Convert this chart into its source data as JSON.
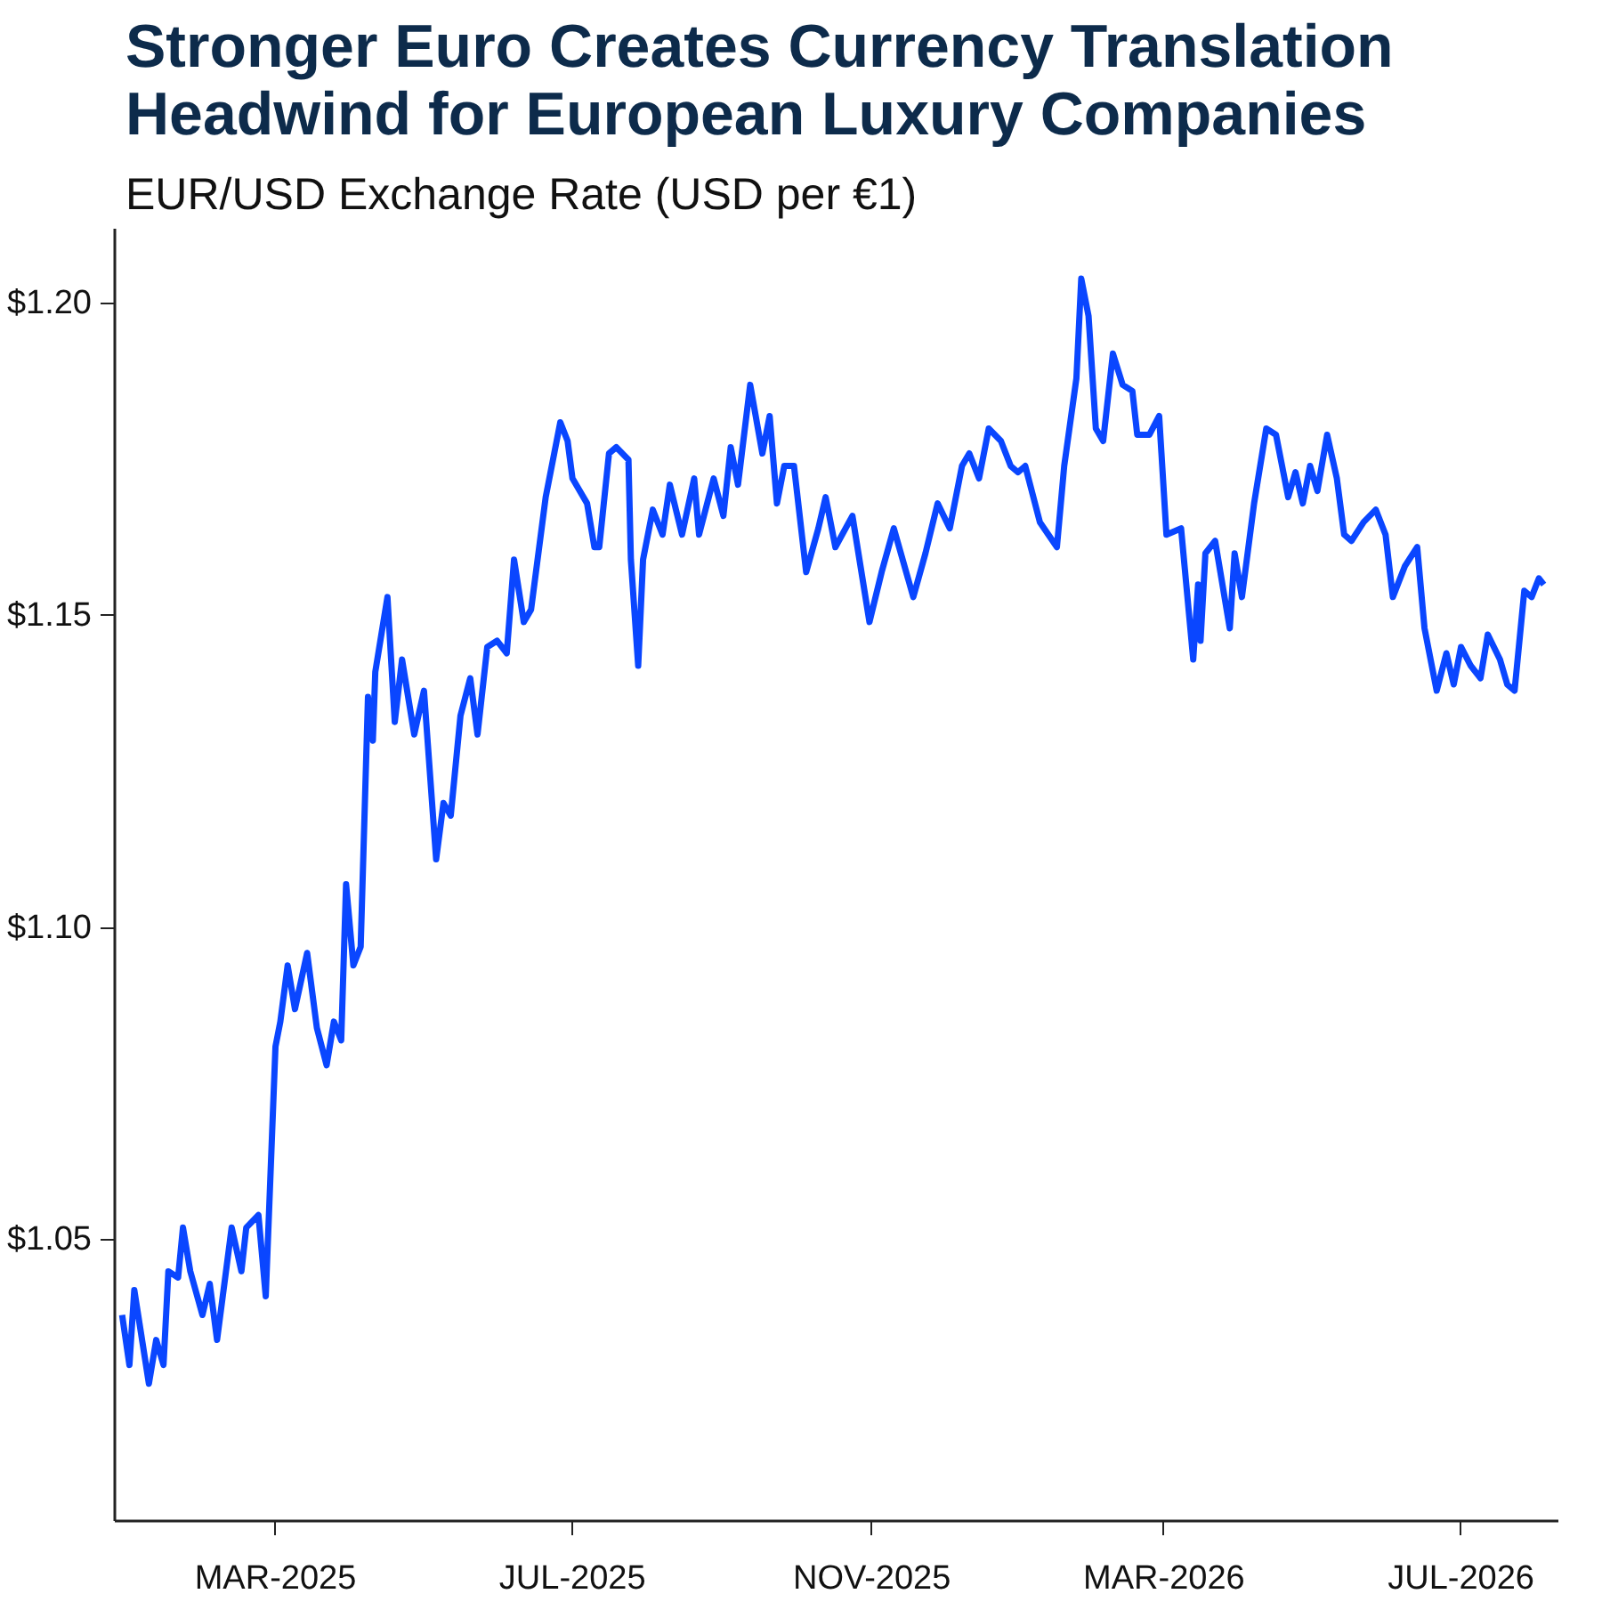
{
  "chart_data": {
    "type": "line",
    "title": "Stronger Euro Creates Currency Translation Headwind for European Luxury Companies",
    "subtitle": "EUR/USD Exchange Rate (USD per €1)",
    "xlim": [
      "2024-12-25",
      "2026-08-10"
    ],
    "xticks": [
      {
        "value": "2025-03-01",
        "label": "MAR-2025"
      },
      {
        "value": "2025-07-01",
        "label": "JUL-2025"
      },
      {
        "value": "2025-11-01",
        "label": "NOV-2025"
      },
      {
        "value": "2026-03-01",
        "label": "MAR-2026"
      },
      {
        "value": "2026-07-01",
        "label": "JUL-2026"
      }
    ],
    "ylim": [
      1.005,
      1.212
    ],
    "yticks": [
      {
        "value": 1.05,
        "label": "$1.05"
      },
      {
        "value": 1.1,
        "label": "$1.10"
      },
      {
        "value": 1.15,
        "label": "$1.15"
      },
      {
        "value": 1.2,
        "label": "$1.20"
      }
    ],
    "line_style": "solid",
    "series": [
      {
        "color": "#0a46ff",
        "x": [
          "2024-12-28",
          "2024-12-31",
          "2025-01-02",
          "2025-01-04",
          "2025-01-08",
          "2025-01-11",
          "2025-01-14",
          "2025-01-16",
          "2025-01-20",
          "2025-01-22",
          "2025-01-25",
          "2025-01-30",
          "2025-02-02",
          "2025-02-05",
          "2025-02-11",
          "2025-02-15",
          "2025-02-17",
          "2025-02-22",
          "2025-02-25",
          "2025-03-01",
          "2025-03-03",
          "2025-03-06",
          "2025-03-09",
          "2025-03-14",
          "2025-03-18",
          "2025-03-22",
          "2025-03-25",
          "2025-03-28",
          "2025-03-30",
          "2025-04-02",
          "2025-04-05",
          "2025-04-08",
          "2025-04-10",
          "2025-04-11",
          "2025-04-16",
          "2025-04-19",
          "2025-04-22",
          "2025-04-27",
          "2025-05-01",
          "2025-05-06",
          "2025-05-09",
          "2025-05-12",
          "2025-05-16",
          "2025-05-20",
          "2025-05-23",
          "2025-05-27",
          "2025-05-31",
          "2025-06-04",
          "2025-06-07",
          "2025-06-11",
          "2025-06-14",
          "2025-06-20",
          "2025-06-26",
          "2025-06-29",
          "2025-07-01",
          "2025-07-07",
          "2025-07-10",
          "2025-07-12",
          "2025-07-16",
          "2025-07-19",
          "2025-07-24",
          "2025-07-25",
          "2025-07-28",
          "2025-07-30",
          "2025-08-03",
          "2025-08-07",
          "2025-08-10",
          "2025-08-15",
          "2025-08-20",
          "2025-08-22",
          "2025-08-28",
          "2025-09-01",
          "2025-09-04",
          "2025-09-07",
          "2025-09-12",
          "2025-09-17",
          "2025-09-20",
          "2025-09-23",
          "2025-09-26",
          "2025-09-30",
          "2025-10-05",
          "2025-10-10",
          "2025-10-13",
          "2025-10-17",
          "2025-10-24",
          "2025-10-31",
          "2025-11-05",
          "2025-11-10",
          "2025-11-18",
          "2025-11-23",
          "2025-11-28",
          "2025-12-03",
          "2025-12-08",
          "2025-12-11",
          "2025-12-15",
          "2025-12-19",
          "2025-12-24",
          "2025-12-28",
          "2025-12-31",
          "2026-01-03",
          "2026-01-09",
          "2026-01-16",
          "2026-01-19",
          "2026-01-24",
          "2026-01-26",
          "2026-01-29",
          "2026-02-01",
          "2026-02-04",
          "2026-02-08",
          "2026-02-12",
          "2026-02-16",
          "2026-02-18",
          "2026-02-23",
          "2026-02-27",
          "2026-03-02",
          "2026-03-08",
          "2026-03-13",
          "2026-03-15",
          "2026-03-16",
          "2026-03-18",
          "2026-03-22",
          "2026-03-28",
          "2026-03-30",
          "2026-04-02",
          "2026-04-07",
          "2026-04-12",
          "2026-04-16",
          "2026-04-21",
          "2026-04-24",
          "2026-04-27",
          "2026-04-30",
          "2026-05-03",
          "2026-05-07",
          "2026-05-11",
          "2026-05-14",
          "2026-05-17",
          "2026-05-22",
          "2026-05-27",
          "2026-05-31",
          "2026-06-03",
          "2026-06-08",
          "2026-06-13",
          "2026-06-16",
          "2026-06-21",
          "2026-06-25",
          "2026-06-28",
          "2026-07-01",
          "2026-07-05",
          "2026-07-09",
          "2026-07-12",
          "2026-07-17",
          "2026-07-20",
          "2026-07-23",
          "2026-07-27",
          "2026-07-30",
          "2026-08-02",
          "2026-08-04"
        ],
        "values": [
          1.038,
          1.03,
          1.042,
          1.037,
          1.027,
          1.034,
          1.03,
          1.045,
          1.044,
          1.052,
          1.045,
          1.038,
          1.043,
          1.034,
          1.052,
          1.045,
          1.052,
          1.054,
          1.041,
          1.081,
          1.085,
          1.094,
          1.087,
          1.096,
          1.084,
          1.078,
          1.085,
          1.082,
          1.107,
          1.094,
          1.097,
          1.137,
          1.13,
          1.141,
          1.153,
          1.133,
          1.143,
          1.131,
          1.138,
          1.111,
          1.12,
          1.118,
          1.134,
          1.14,
          1.131,
          1.145,
          1.146,
          1.144,
          1.159,
          1.149,
          1.151,
          1.169,
          1.181,
          1.178,
          1.172,
          1.168,
          1.161,
          1.161,
          1.176,
          1.177,
          1.175,
          1.159,
          1.142,
          1.159,
          1.167,
          1.163,
          1.171,
          1.163,
          1.172,
          1.163,
          1.172,
          1.166,
          1.177,
          1.171,
          1.187,
          1.176,
          1.182,
          1.168,
          1.174,
          1.174,
          1.157,
          1.164,
          1.169,
          1.161,
          1.166,
          1.149,
          1.157,
          1.164,
          1.153,
          1.16,
          1.168,
          1.164,
          1.174,
          1.176,
          1.172,
          1.18,
          1.178,
          1.174,
          1.173,
          1.174,
          1.165,
          1.161,
          1.174,
          1.188,
          1.204,
          1.198,
          1.18,
          1.178,
          1.192,
          1.187,
          1.186,
          1.179,
          1.179,
          1.182,
          1.163,
          1.164,
          1.143,
          1.155,
          1.146,
          1.16,
          1.162,
          1.148,
          1.16,
          1.153,
          1.168,
          1.18,
          1.179,
          1.169,
          1.173,
          1.168,
          1.174,
          1.17,
          1.179,
          1.172,
          1.163,
          1.162,
          1.165,
          1.167,
          1.163,
          1.153,
          1.158,
          1.161,
          1.148,
          1.138,
          1.144,
          1.139,
          1.145,
          1.142,
          1.14,
          1.147,
          1.143,
          1.139,
          1.138,
          1.154,
          1.153,
          1.156,
          1.155
        ]
      }
    ]
  }
}
